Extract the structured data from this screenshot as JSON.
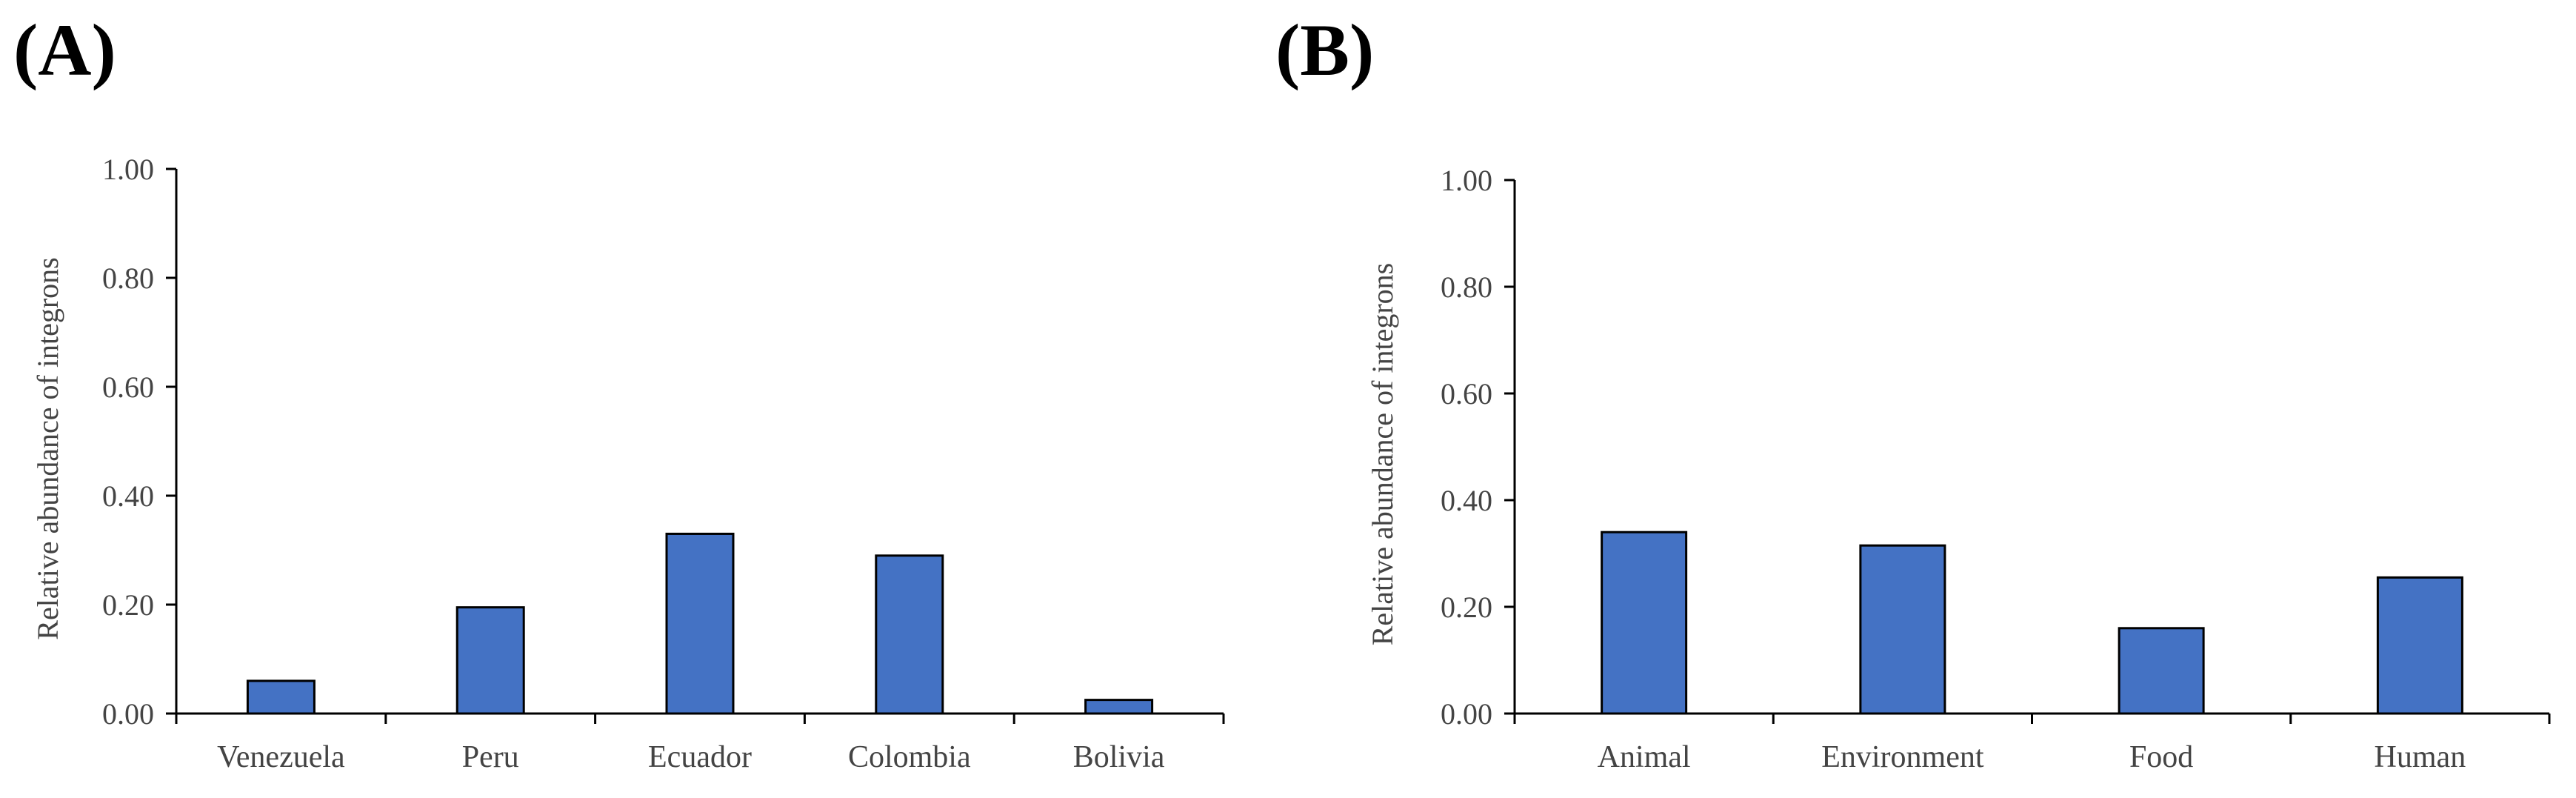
{
  "panels": {
    "a": "(A)",
    "b": "(B)"
  },
  "colors": {
    "bar": "#4472C4",
    "bar_stroke": "#000000",
    "axis": "#000000",
    "text": "#444444"
  },
  "chart_data": [
    {
      "type": "bar",
      "title": "",
      "xlabel": "",
      "ylabel": "Relative abundance of integrons",
      "ylim": [
        0,
        1.0
      ],
      "yticks": [
        "0.00",
        "0.20",
        "0.40",
        "0.60",
        "0.80",
        "1.00"
      ],
      "categories": [
        "Venezuela",
        "Peru",
        "Ecuador",
        "Colombia",
        "Bolivia"
      ],
      "values": [
        0.06,
        0.195,
        0.33,
        0.29,
        0.025
      ]
    },
    {
      "type": "bar",
      "title": "",
      "xlabel": "",
      "ylabel": "Relative abundance of integrons",
      "ylim": [
        0,
        1.0
      ],
      "yticks": [
        "0.00",
        "0.20",
        "0.40",
        "0.60",
        "0.80",
        "1.00"
      ],
      "categories": [
        "Animal",
        "Environment",
        "Food",
        "Human"
      ],
      "values": [
        0.34,
        0.315,
        0.16,
        0.255
      ]
    }
  ]
}
